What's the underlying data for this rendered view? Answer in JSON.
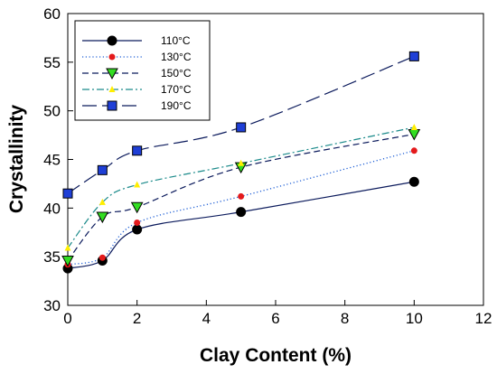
{
  "chart_data": {
    "type": "line",
    "xlabel": "Clay Content (%)",
    "ylabel": "Crystallinity",
    "xlim": [
      0,
      12
    ],
    "ylim": [
      30,
      60
    ],
    "xticks": [
      "0",
      "2",
      "4",
      "6",
      "8",
      "10",
      "12"
    ],
    "yticks": [
      "30",
      "35",
      "40",
      "45",
      "50",
      "55",
      "60"
    ],
    "grid": false,
    "legend_position": "top-left",
    "x": [
      0,
      1,
      2,
      5,
      10
    ],
    "series": [
      {
        "name": "110°C",
        "values": [
          33.8,
          34.6,
          37.8,
          39.6,
          42.7
        ],
        "marker": "circle",
        "marker_color": "#000000",
        "line_color": "#0b1a5c",
        "dash": "solid"
      },
      {
        "name": "130°C",
        "values": [
          34.2,
          34.9,
          38.5,
          41.2,
          45.9
        ],
        "marker": "small-circle",
        "marker_color": "#e41a1c",
        "line_color": "#1f5fd6",
        "dash": "dotted"
      },
      {
        "name": "150°C",
        "values": [
          34.6,
          39.1,
          40.1,
          44.2,
          47.6
        ],
        "marker": "triangle-down",
        "marker_color": "#33dd22",
        "line_color": "#0b1a5c",
        "dash": "dashed"
      },
      {
        "name": "170°C",
        "values": [
          35.9,
          40.6,
          42.4,
          44.6,
          48.3
        ],
        "marker": "triangle-up",
        "marker_color": "#ffee00",
        "line_color": "#1a8a8a",
        "dash": "dash-dot"
      },
      {
        "name": "190°C",
        "values": [
          41.5,
          43.9,
          45.9,
          48.3,
          55.6
        ],
        "marker": "square",
        "marker_color": "#1f3fd6",
        "line_color": "#0b1a5c",
        "dash": "long-dash"
      }
    ]
  }
}
